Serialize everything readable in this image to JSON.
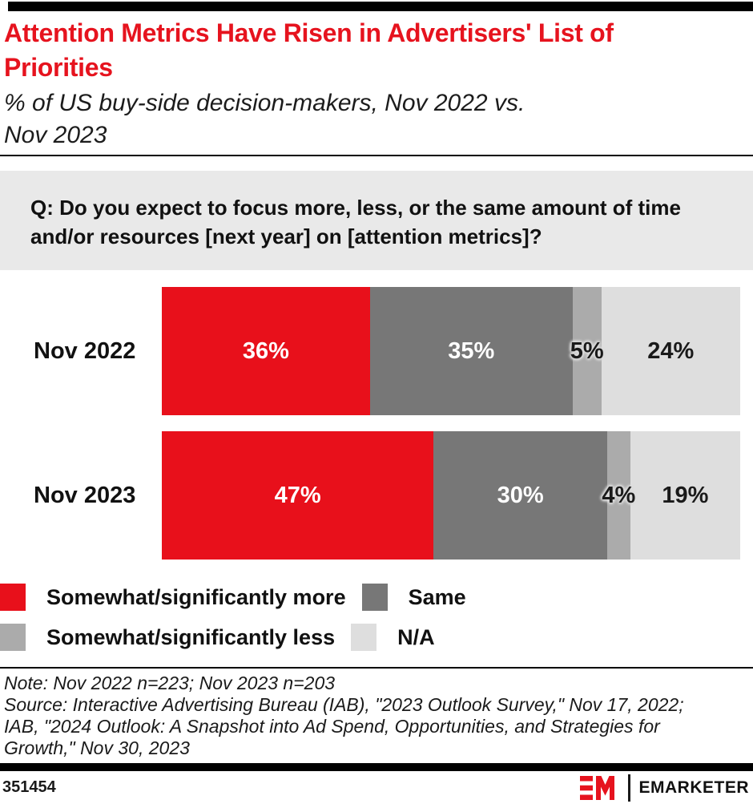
{
  "header": {
    "title_lines": [
      "Attention Metrics Have Risen in Advertisers' List of",
      "Priorities"
    ],
    "subtitle_lines": [
      "% of US buy-side decision-makers, Nov 2022 vs.",
      "Nov 2023"
    ]
  },
  "question_lines": [
    "Q: Do you expect to focus more, less, or the same amount of time",
    "and/or resources [next year] on [attention metrics]?"
  ],
  "chart_data": {
    "type": "bar",
    "variant": "horizontal-stacked",
    "title": "Attention Metrics Have Risen in Advertisers' List of Priorities",
    "subtitle": "% of US buy-side decision-makers, Nov 2022 vs. Nov 2023",
    "categories": [
      "Nov 2022",
      "Nov 2023"
    ],
    "series": [
      {
        "name": "Somewhat/significantly more",
        "color": "#e8101b",
        "label_color": "light",
        "halo": false,
        "values": [
          36,
          47
        ]
      },
      {
        "name": "Same",
        "color": "#777777",
        "label_color": "light",
        "halo": false,
        "values": [
          35,
          30
        ]
      },
      {
        "name": "Somewhat/significantly less",
        "color": "#ababab",
        "label_color": "dark",
        "halo": true,
        "values": [
          5,
          4
        ]
      },
      {
        "name": "N/A",
        "color": "#dedede",
        "label_color": "dark",
        "halo": false,
        "values": [
          24,
          19
        ]
      }
    ],
    "value_suffix": "%",
    "xlim": [
      0,
      100
    ],
    "grid": false,
    "legend_position": "bottom-left"
  },
  "notes": {
    "note": "Note: Nov 2022 n=223; Nov 2023 n=203",
    "source_lines": [
      "Source: Interactive Advertising Bureau (IAB), \"2023 Outlook Survey,\" Nov 17, 2022;",
      "IAB, \"2024 Outlook: A Snapshot into Ad Spend, Opportunities, and Strategies for",
      "Growth,\" Nov 30, 2023"
    ]
  },
  "footer": {
    "chart_id": "351454",
    "brand": "EMARKETER"
  },
  "colors": {
    "accent_red": "#e6131e",
    "question_box_bg": "#e9e9e9",
    "bar_black": "#000000"
  }
}
